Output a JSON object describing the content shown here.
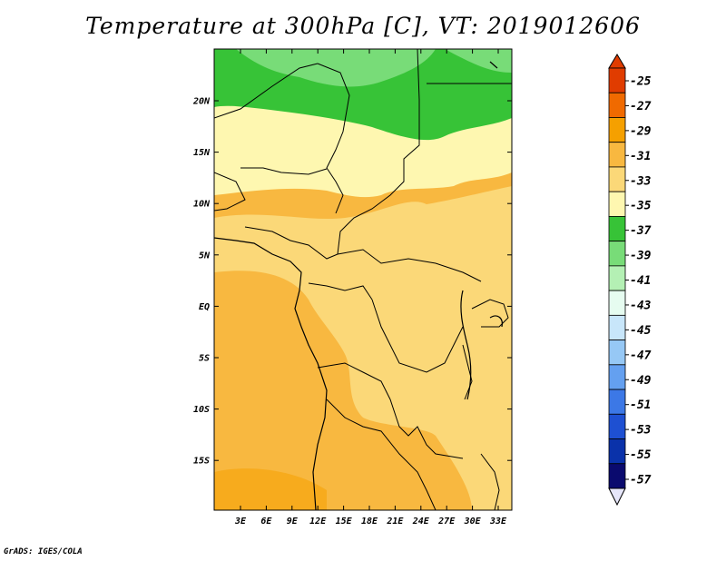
{
  "title": "Temperature at 300hPa [C], VT: 2019012606",
  "credit": "GrADS: IGES/COLA",
  "map": {
    "lon_labels": [
      "3E",
      "6E",
      "9E",
      "12E",
      "15E",
      "18E",
      "21E",
      "24E",
      "27E",
      "30E",
      "33E"
    ],
    "lat_labels": [
      "20N",
      "15N",
      "10N",
      "5N",
      "EQ",
      "5S",
      "10S",
      "15S"
    ]
  },
  "colorbar": {
    "labels": [
      "-25",
      "-27",
      "-29",
      "-31",
      "-33",
      "-35",
      "-37",
      "-39",
      "-41",
      "-43",
      "-45",
      "-47",
      "-49",
      "-51",
      "-53",
      "-55",
      "-57"
    ],
    "colors": [
      "#e03c00",
      "#f06a00",
      "#f5a000",
      "#f8b840",
      "#fbd878",
      "#fef7b0",
      "#37c337",
      "#78dc78",
      "#b4f0b4",
      "#e6fcf0",
      "#c8e6fa",
      "#96c8f5",
      "#64a0f0",
      "#3c78e6",
      "#1e50d2",
      "#0a32aa",
      "#0a0a6e"
    ],
    "top_tip_color": "#e03c00",
    "bottom_tip_color": "#e6e6fa"
  }
}
